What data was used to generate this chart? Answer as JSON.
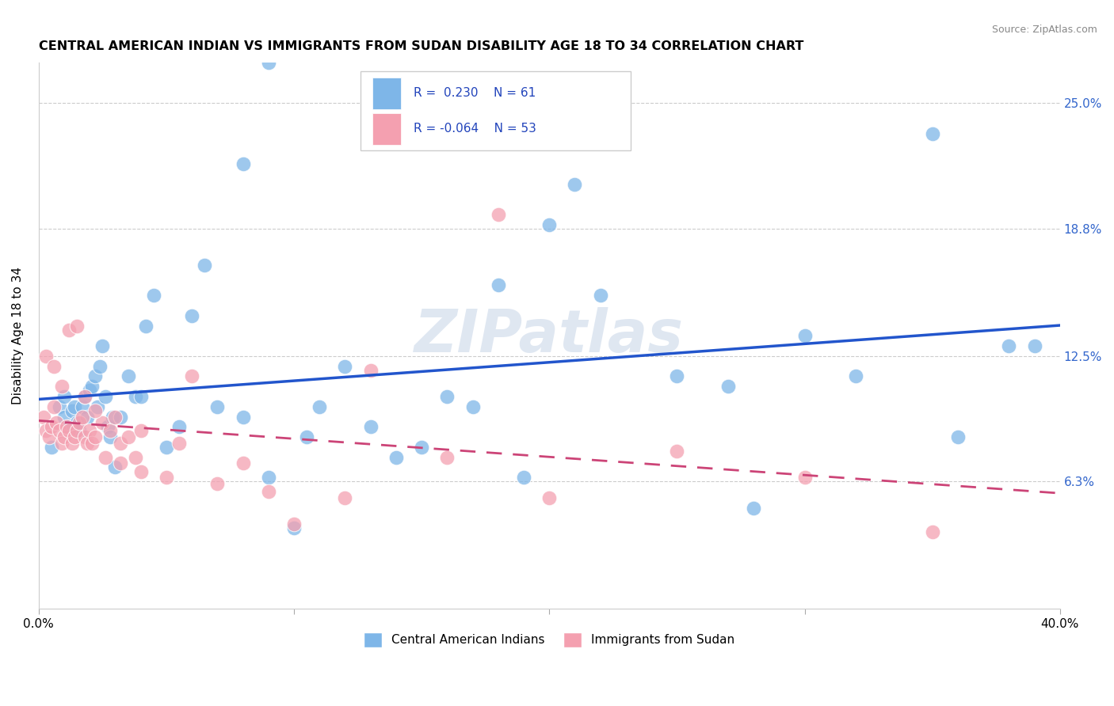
{
  "title": "CENTRAL AMERICAN INDIAN VS IMMIGRANTS FROM SUDAN DISABILITY AGE 18 TO 34 CORRELATION CHART",
  "source": "Source: ZipAtlas.com",
  "ylabel": "Disability Age 18 to 34",
  "ytick_labels": [
    "6.3%",
    "12.5%",
    "18.8%",
    "25.0%"
  ],
  "ytick_values": [
    0.063,
    0.125,
    0.188,
    0.25
  ],
  "xlim": [
    0.0,
    0.4
  ],
  "ylim": [
    0.0,
    0.27
  ],
  "r_blue": 0.23,
  "n_blue": 61,
  "r_pink": -0.064,
  "n_pink": 53,
  "legend_label_blue": "Central American Indians",
  "legend_label_pink": "Immigrants from Sudan",
  "blue_color": "#7EB6E8",
  "pink_color": "#F4A0B0",
  "trend_blue_color": "#2255CC",
  "trend_pink_color": "#CC4477",
  "watermark": "ZIPatlas",
  "blue_scatter_x": [
    0.005,
    0.008,
    0.01,
    0.01,
    0.012,
    0.013,
    0.014,
    0.015,
    0.016,
    0.017,
    0.018,
    0.019,
    0.02,
    0.021,
    0.022,
    0.023,
    0.024,
    0.025,
    0.026,
    0.027,
    0.028,
    0.029,
    0.03,
    0.032,
    0.035,
    0.038,
    0.04,
    0.042,
    0.045,
    0.05,
    0.055,
    0.06,
    0.065,
    0.07,
    0.08,
    0.09,
    0.1,
    0.105,
    0.11,
    0.12,
    0.13,
    0.14,
    0.15,
    0.16,
    0.17,
    0.2,
    0.22,
    0.25,
    0.28,
    0.3,
    0.32,
    0.35,
    0.36,
    0.38,
    0.39,
    0.21,
    0.18,
    0.08,
    0.09,
    0.19,
    0.27
  ],
  "blue_scatter_y": [
    0.08,
    0.1,
    0.095,
    0.105,
    0.09,
    0.098,
    0.1,
    0.092,
    0.088,
    0.1,
    0.105,
    0.095,
    0.108,
    0.11,
    0.115,
    0.1,
    0.12,
    0.13,
    0.105,
    0.09,
    0.085,
    0.095,
    0.07,
    0.095,
    0.115,
    0.105,
    0.105,
    0.14,
    0.155,
    0.08,
    0.09,
    0.145,
    0.17,
    0.1,
    0.095,
    0.065,
    0.04,
    0.085,
    0.1,
    0.12,
    0.09,
    0.075,
    0.08,
    0.105,
    0.1,
    0.19,
    0.155,
    0.115,
    0.05,
    0.135,
    0.115,
    0.235,
    0.085,
    0.13,
    0.13,
    0.21,
    0.16,
    0.22,
    0.27,
    0.065,
    0.11
  ],
  "pink_scatter_x": [
    0.002,
    0.003,
    0.004,
    0.005,
    0.006,
    0.007,
    0.008,
    0.009,
    0.01,
    0.011,
    0.012,
    0.013,
    0.014,
    0.015,
    0.016,
    0.017,
    0.018,
    0.019,
    0.02,
    0.021,
    0.022,
    0.025,
    0.028,
    0.03,
    0.032,
    0.035,
    0.038,
    0.04,
    0.05,
    0.06,
    0.08,
    0.1,
    0.13,
    0.16,
    0.2,
    0.25,
    0.3,
    0.35,
    0.003,
    0.006,
    0.009,
    0.012,
    0.015,
    0.018,
    0.022,
    0.026,
    0.032,
    0.04,
    0.055,
    0.07,
    0.09,
    0.12,
    0.18
  ],
  "pink_scatter_y": [
    0.095,
    0.088,
    0.085,
    0.09,
    0.1,
    0.092,
    0.088,
    0.082,
    0.085,
    0.09,
    0.088,
    0.082,
    0.085,
    0.088,
    0.092,
    0.095,
    0.085,
    0.082,
    0.088,
    0.082,
    0.085,
    0.092,
    0.088,
    0.095,
    0.082,
    0.085,
    0.075,
    0.088,
    0.065,
    0.115,
    0.072,
    0.042,
    0.118,
    0.075,
    0.055,
    0.078,
    0.065,
    0.038,
    0.125,
    0.12,
    0.11,
    0.138,
    0.14,
    0.105,
    0.098,
    0.075,
    0.072,
    0.068,
    0.082,
    0.062,
    0.058,
    0.055,
    0.195
  ]
}
